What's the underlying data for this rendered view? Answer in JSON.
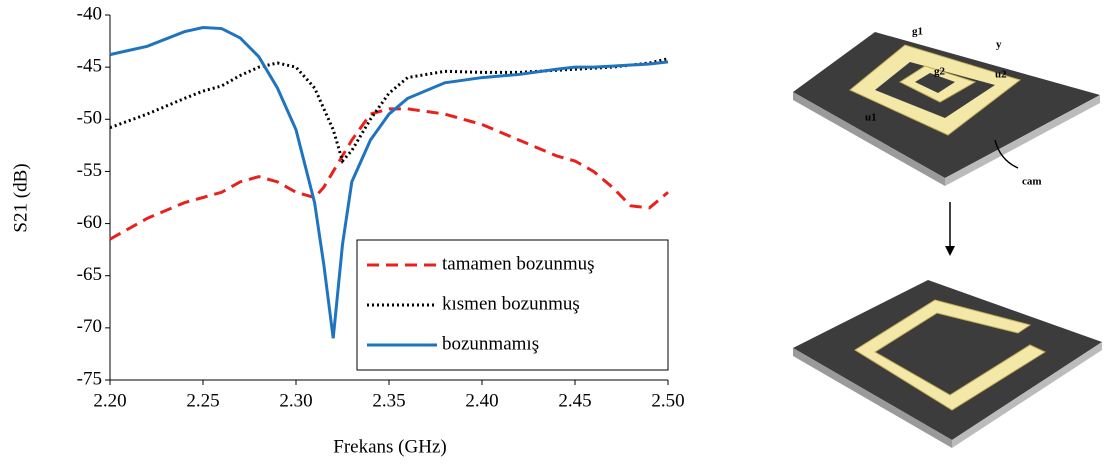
{
  "chart_data": {
    "type": "line",
    "x_label": "Frekans (GHz)",
    "y_label": "S21 (dB)",
    "x": [
      2.2,
      2.22,
      2.24,
      2.25,
      2.26,
      2.27,
      2.28,
      2.29,
      2.3,
      2.31,
      2.315,
      2.32,
      2.325,
      2.33,
      2.34,
      2.35,
      2.36,
      2.38,
      2.4,
      2.42,
      2.44,
      2.45,
      2.46,
      2.47,
      2.48,
      2.49,
      2.5
    ],
    "series": [
      {
        "name": "tamamen bozunmuş",
        "color": "#e8211c",
        "dash": "12 7",
        "values": [
          -61.5,
          -59.5,
          -58,
          -57.5,
          -57,
          -56,
          -55.5,
          -56,
          -57,
          -57.5,
          -56.5,
          -55,
          -53.5,
          -52,
          -49.5,
          -49,
          -49,
          -49.5,
          -50.5,
          -52,
          -53.5,
          -54,
          -55,
          -56.5,
          -58.3,
          -58.5,
          -57
        ]
      },
      {
        "name": "kısmen bozunmuş",
        "color": "#000000",
        "dash": "2 3",
        "values": [
          -50.8,
          -49.5,
          -48,
          -47.3,
          -46.8,
          -45.8,
          -45,
          -44.6,
          -45,
          -47,
          -49,
          -51,
          -54,
          -53,
          -50,
          -47.5,
          -46,
          -45.4,
          -45.5,
          -45.5,
          -45.3,
          -45.2,
          -45.1,
          -45,
          -44.8,
          -44.6,
          -44.2
        ]
      },
      {
        "name": "bozunmamış",
        "color": "#1f74c0",
        "dash": "none",
        "values": [
          -43.8,
          -43,
          -41.6,
          -41.2,
          -41.3,
          -42.2,
          -44,
          -47,
          -51,
          -58,
          -64,
          -71,
          -62,
          -56,
          -52,
          -49.5,
          -48,
          -46.5,
          -46,
          -45.7,
          -45.2,
          -45,
          -45,
          -44.9,
          -44.8,
          -44.7,
          -44.5
        ]
      }
    ],
    "xlim": [
      2.2,
      2.5
    ],
    "xticks": [
      {
        "value": 2.2,
        "label": "2.20"
      },
      {
        "value": 2.25,
        "label": "2.25"
      },
      {
        "value": 2.3,
        "label": "2.30"
      },
      {
        "value": 2.35,
        "label": "2.35"
      },
      {
        "value": 2.4,
        "label": "2.40"
      },
      {
        "value": 2.45,
        "label": "2.45"
      },
      {
        "value": 2.5,
        "label": "2.50"
      }
    ],
    "ylim": [
      -75,
      -40
    ],
    "yticks": [
      -75,
      -70,
      -65,
      -60,
      -55,
      -50,
      -45,
      -40
    ],
    "grid": false,
    "legend": "lower right"
  },
  "figure": {
    "labels": {
      "g1": "g1",
      "g2": "g2",
      "y": "y",
      "u1": "u1",
      "u2": "u2",
      "cam": "cam"
    }
  }
}
